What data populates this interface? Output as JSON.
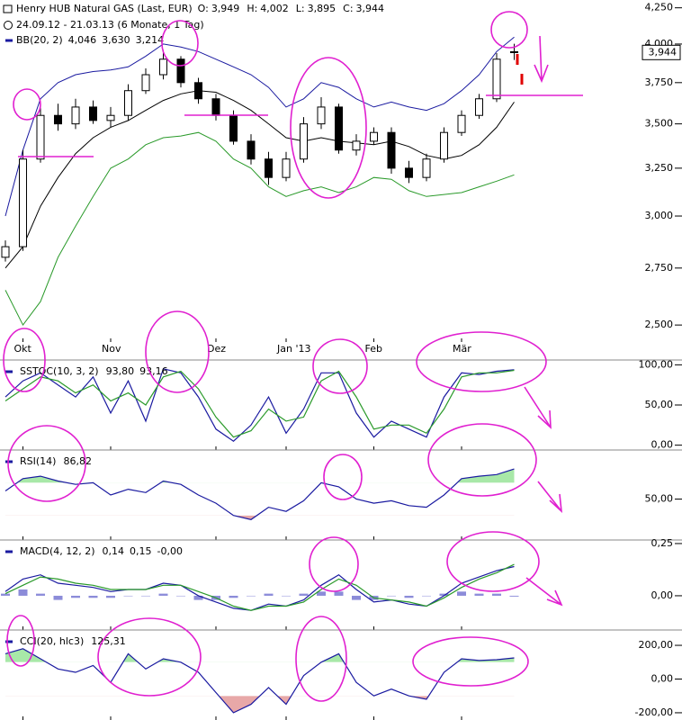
{
  "chart_data": [
    {
      "type": "candlestick",
      "title": "Henry HUB Natural GAS (Last, EUR)",
      "subtitle": "24.09.12 - 21.03.13 (6 Monate, 1 Tag)",
      "quote": [
        {
          "name": "O:",
          "value": 3949,
          "label": "3,949"
        },
        {
          "name": "H:",
          "value": 4002,
          "label": "4,002"
        },
        {
          "name": "L:",
          "value": 3895,
          "label": "3,895"
        },
        {
          "name": "C:",
          "value": 3944,
          "label": "3,944"
        }
      ],
      "categories": [
        null,
        "Okt",
        null,
        null,
        null,
        null,
        "Nov",
        null,
        null,
        null,
        null,
        null,
        "Dez",
        null,
        null,
        null,
        "Jan '13",
        null,
        null,
        null,
        null,
        "Feb",
        null,
        null,
        null,
        null,
        "Mär",
        null,
        null,
        null
      ],
      "open": [
        2800,
        2850,
        3300,
        3550,
        3500,
        3600,
        3520,
        3550,
        3700,
        3800,
        3900,
        3750,
        3650,
        3550,
        3400,
        3300,
        3200,
        3300,
        3500,
        3600,
        3350,
        3400,
        3450,
        3250,
        3200,
        3300,
        3450,
        3550,
        3650,
        3949
      ],
      "high": [
        2880,
        3350,
        3600,
        3620,
        3650,
        3640,
        3600,
        3740,
        3840,
        3960,
        3920,
        3780,
        3680,
        3580,
        3440,
        3340,
        3340,
        3540,
        3660,
        3620,
        3440,
        3480,
        3480,
        3290,
        3330,
        3480,
        3580,
        3680,
        3940,
        4002
      ],
      "low": [
        2780,
        2830,
        3280,
        3460,
        3470,
        3500,
        3480,
        3520,
        3680,
        3770,
        3720,
        3620,
        3520,
        3380,
        3270,
        3160,
        3180,
        3280,
        3470,
        3330,
        3320,
        3380,
        3220,
        3170,
        3180,
        3280,
        3430,
        3530,
        3630,
        3895
      ],
      "close": [
        2850,
        3300,
        3550,
        3500,
        3600,
        3520,
        3550,
        3700,
        3800,
        3900,
        3750,
        3650,
        3550,
        3400,
        3300,
        3200,
        3300,
        3500,
        3600,
        3350,
        3400,
        3450,
        3250,
        3200,
        3300,
        3450,
        3550,
        3650,
        3900,
        3944
      ],
      "color": "#000000",
      "overlay": {
        "title": "BB(20, 2)",
        "series": [
          {
            "color": "#1a1aa0",
            "values": [
              3000,
              3350,
              3650,
              3750,
              3800,
              3820,
              3830,
              3850,
              3920,
              4000,
              3980,
              3950,
              3900,
              3850,
              3800,
              3720,
              3600,
              3650,
              3750,
              3720,
              3650,
              3600,
              3630,
              3600,
              3580,
              3620,
              3700,
              3800,
              3950,
              4046
            ],
            "current": {
              "value": 4046,
              "label": "4,046"
            }
          },
          {
            "color": "#000000",
            "values": [
              2750,
              2850,
              3050,
              3200,
              3330,
              3420,
              3480,
              3520,
              3580,
              3640,
              3680,
              3700,
              3690,
              3640,
              3580,
              3500,
              3420,
              3400,
              3420,
              3400,
              3390,
              3380,
              3400,
              3370,
              3320,
              3300,
              3320,
              3380,
              3480,
              3630
            ],
            "current": {
              "value": 3630,
              "label": "3,630"
            }
          },
          {
            "color": "#2a9a2a",
            "values": [
              2650,
              2500,
              2600,
              2800,
              2950,
              3100,
              3250,
              3300,
              3380,
              3420,
              3430,
              3450,
              3400,
              3300,
              3250,
              3150,
              3100,
              3130,
              3150,
              3120,
              3150,
              3200,
              3190,
              3130,
              3100,
              3110,
              3120,
              3150,
              3180,
              3214
            ],
            "current": {
              "value": 3214,
              "label": "3,214"
            }
          }
        ]
      },
      "ylim": [
        2430,
        4280
      ],
      "log_scale": true,
      "yticks": [
        {
          "value": 2500,
          "label": "2,500"
        },
        {
          "value": 2750,
          "label": "2,750"
        },
        {
          "value": 3000,
          "label": "3,000"
        },
        {
          "value": 3250,
          "label": "3,250"
        },
        {
          "value": 3500,
          "label": "3,500"
        },
        {
          "value": 3750,
          "label": "3,750"
        },
        {
          "value": 4000,
          "label": "4,000"
        },
        {
          "value": 4250,
          "label": "4,250"
        }
      ]
    },
    {
      "type": "line",
      "title": "SSTOC(10, 3, 2)",
      "ylim": [
        -6,
        106
      ],
      "yticks": [
        {
          "value": 0,
          "label": "0,00"
        },
        {
          "value": 50,
          "label": "50,00"
        },
        {
          "value": 100,
          "label": "100,00"
        }
      ],
      "series": [
        {
          "color": "#1a1aa0",
          "values": [
            60,
            80,
            90,
            75,
            60,
            85,
            40,
            80,
            30,
            95,
            90,
            60,
            20,
            5,
            25,
            60,
            15,
            45,
            90,
            90,
            40,
            10,
            30,
            20,
            10,
            60,
            90,
            88,
            92,
            93.8
          ],
          "current": {
            "value": 93.8,
            "label": "93,80"
          }
        },
        {
          "color": "#2a9a2a",
          "values": [
            55,
            70,
            85,
            80,
            65,
            75,
            55,
            65,
            50,
            85,
            92,
            70,
            35,
            10,
            18,
            45,
            30,
            35,
            80,
            92,
            60,
            20,
            25,
            25,
            15,
            45,
            85,
            90,
            90,
            93.16
          ],
          "current": {
            "value": 93.16,
            "label": "93,16"
          }
        }
      ]
    },
    {
      "type": "line",
      "title": "RSI(14)",
      "ylim": [
        0,
        110
      ],
      "yticks": [
        {
          "value": 50,
          "label": "50,00"
        }
      ],
      "bands": [
        70,
        30
      ],
      "band_colors": [
        "#a8e8a8",
        "#e8a8a8"
      ],
      "series": [
        {
          "color": "#1a1aa0",
          "values": [
            60,
            75,
            78,
            72,
            68,
            70,
            55,
            62,
            58,
            72,
            68,
            55,
            45,
            30,
            25,
            40,
            35,
            48,
            70,
            65,
            50,
            45,
            48,
            42,
            40,
            55,
            75,
            78,
            80,
            86.82
          ],
          "current": {
            "value": 86.82,
            "label": "86,82"
          }
        }
      ]
    },
    {
      "type": "line",
      "title": "MACD(4, 12, 2)",
      "ylim": [
        -0.164,
        0.267
      ],
      "yticks": [
        {
          "value": 0,
          "label": "0,00"
        },
        {
          "value": 0.25,
          "label": "0,25"
        }
      ],
      "series": [
        {
          "color": "#1a1aa0",
          "values": [
            0.02,
            0.08,
            0.1,
            0.06,
            0.05,
            0.04,
            0.02,
            0.03,
            0.03,
            0.06,
            0.05,
            0.0,
            -0.03,
            -0.06,
            -0.07,
            -0.04,
            -0.05,
            -0.02,
            0.05,
            0.1,
            0.03,
            -0.03,
            -0.02,
            -0.04,
            -0.05,
            0.0,
            0.06,
            0.09,
            0.12,
            0.14
          ],
          "current": {
            "value": 0.14,
            "label": "0,14"
          }
        },
        {
          "color": "#2a9a2a",
          "values": [
            0.01,
            0.05,
            0.09,
            0.08,
            0.06,
            0.05,
            0.03,
            0.03,
            0.03,
            0.05,
            0.05,
            0.02,
            -0.01,
            -0.05,
            -0.07,
            -0.05,
            -0.05,
            -0.03,
            0.03,
            0.08,
            0.05,
            -0.01,
            -0.02,
            -0.03,
            -0.05,
            -0.01,
            0.04,
            0.08,
            0.11,
            0.15
          ],
          "current": {
            "value": 0.15,
            "label": "0,15"
          }
        },
        {
          "type": "bar",
          "color": "#6666cc",
          "values": [
            0.01,
            0.03,
            0.01,
            -0.02,
            -0.01,
            -0.01,
            -0.01,
            0,
            0,
            0.01,
            0,
            -0.02,
            -0.02,
            -0.01,
            0,
            0.01,
            0,
            0.01,
            0.02,
            0.02,
            -0.02,
            -0.02,
            0,
            -0.01,
            0,
            0.01,
            0.02,
            0.01,
            0.01,
            -0.004
          ],
          "current": {
            "value": -0.004,
            "label": "-0,00"
          }
        }
      ]
    },
    {
      "type": "line",
      "title": "CCI(20, hlc3)",
      "ylim": [
        -243,
        291
      ],
      "yticks": [
        {
          "value": 200,
          "label": "200,00"
        },
        {
          "value": 0,
          "label": "0,00"
        },
        {
          "value": -200,
          "label": "-200,00"
        }
      ],
      "bands": [
        100,
        -100
      ],
      "band_colors": [
        "#a8e8a8",
        "#e8a8a8"
      ],
      "series": [
        {
          "color": "#1a1aa0",
          "values": [
            150,
            180,
            120,
            60,
            40,
            80,
            -20,
            150,
            60,
            120,
            100,
            40,
            -80,
            -200,
            -150,
            -50,
            -150,
            20,
            100,
            150,
            -20,
            -100,
            -60,
            -100,
            -120,
            40,
            120,
            110,
            115,
            125.31
          ],
          "current": {
            "value": 125.31,
            "label": "125,31"
          }
        }
      ]
    }
  ]
}
